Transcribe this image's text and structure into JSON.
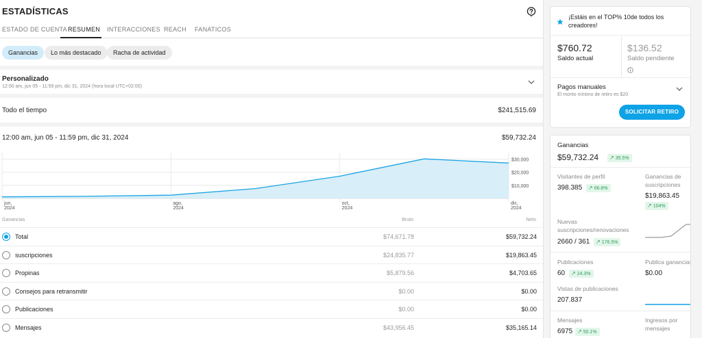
{
  "header": {
    "title": "ESTADÍSTICAS"
  },
  "tabs": [
    {
      "label": "ESTADO DE CUENTA"
    },
    {
      "label": "RESUMEN"
    },
    {
      "label": "INTERACCIONES"
    },
    {
      "label": "REACH"
    },
    {
      "label": "FANATICOS"
    }
  ],
  "chips": [
    {
      "label": "Ganancias"
    },
    {
      "label": "Lo más destacado"
    },
    {
      "label": "Racha de actividad"
    }
  ],
  "period": {
    "title": "Personalizado",
    "subtitle": "12:00 am, jun 05 - 11:59 pm, dic 31, 2024 (hora local UTC+02:00)"
  },
  "all_time": {
    "label": "Todo el tiempo",
    "value": "$241,515.69"
  },
  "range": {
    "label": "12:00 am, jun 05 - 11:59 pm, dic 31, 2024",
    "value": "$59,732.24"
  },
  "chart_data": {
    "type": "area",
    "x": [
      "jun 2024",
      "jul 2024",
      "ago 2024",
      "sep 2024",
      "oct 2024",
      "nov 2024",
      "dic 2024"
    ],
    "series": [
      {
        "values": [
          1200,
          1600,
          2500,
          7500,
          17000,
          30200,
          27000
        ]
      }
    ],
    "x_tick_labels": [
      {
        "line1": "jun,",
        "line2": "2024"
      },
      {
        "line1": "ago,",
        "line2": "2024"
      },
      {
        "line1": "oct,",
        "line2": "2024"
      },
      {
        "line1": "dic,",
        "line2": "2024"
      }
    ],
    "y_tick_labels": [
      "$30,000",
      "$20,000",
      "$10,000"
    ],
    "ylim": [
      0,
      35000
    ],
    "grid": true
  },
  "table": {
    "headers": {
      "name": "Ganancias",
      "bruto": "Bruto",
      "neto": "Neto"
    },
    "rows": [
      {
        "label": "Total",
        "bruto": "$74,671.78",
        "neto": "$59,732.24",
        "selected": true
      },
      {
        "label": "suscripciones",
        "bruto": "$24,835.77",
        "neto": "$19,863.45",
        "selected": false
      },
      {
        "label": "Propinas",
        "bruto": "$5,879.56",
        "neto": "$4,703.65",
        "selected": false
      },
      {
        "label": "Consejos para retransmitir",
        "bruto": "$0.00",
        "neto": "$0.00",
        "selected": false
      },
      {
        "label": "Publicaciones",
        "bruto": "$0.00",
        "neto": "$0.00",
        "selected": false
      },
      {
        "label": "Mensajes",
        "bruto": "$43,956.45",
        "neto": "$35,165.14",
        "selected": false
      }
    ]
  },
  "side": {
    "banner": "¡Estáis en el TOP% 10de todos los creadores!",
    "balance": {
      "amount": "$760.72",
      "label": "Saldo actual"
    },
    "pending": {
      "amount": "$136.52",
      "label": "Saldo pendiente"
    },
    "payouts": {
      "title": "Pagos manuales",
      "subtitle": "El monto mínimo de retiro es $20"
    },
    "withdraw_button": "SOLICITAR RETIRO",
    "earnings": {
      "title": "Ganancias",
      "total": "$59,732.24",
      "total_change": "35.5%",
      "profile_visitors": {
        "label": "Visitantes de perfil",
        "value": "398.385",
        "change": "66.8%"
      },
      "subscription_earnings": {
        "label": "Ganancias de suscripciones",
        "value": "$19,863.45",
        "change": "104%"
      },
      "new_subs": {
        "label": "Nuevas suscripciones/renovaciones",
        "value": "2660 / 361",
        "change": "176.5%"
      },
      "posts": {
        "label": "Publicaciones",
        "value": "60",
        "change": "24.3%"
      },
      "post_earnings": {
        "label": "Publica ganancias",
        "value": "$0.00"
      },
      "post_views": {
        "label": "Vistas de publicaciones",
        "value": "207.837"
      },
      "messages": {
        "label": "Mensajes",
        "value": "6975",
        "change": "50.1%"
      },
      "message_earnings": {
        "label": "Ingresos por mensajes"
      }
    },
    "colors": {
      "accent": "#0ea2e6",
      "positive": "#2e9b5a",
      "positive_bg": "#e2f6ea"
    }
  }
}
